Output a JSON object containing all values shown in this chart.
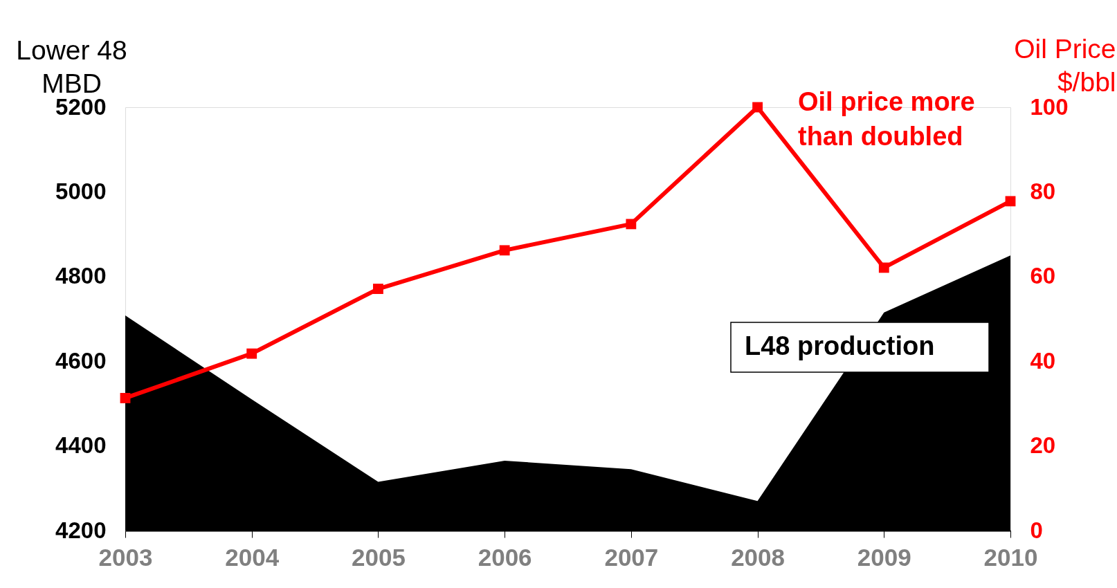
{
  "chart_data": {
    "type": "area",
    "categories": [
      "2003",
      "2004",
      "2005",
      "2006",
      "2007",
      "2008",
      "2009",
      "2010"
    ],
    "ylabel": "Lower 48\nMBD",
    "y2label": "Oil Price\n$/bbl",
    "ylim": [
      4200,
      5200
    ],
    "yticks": [
      4200,
      4400,
      4600,
      4800,
      5000,
      5200
    ],
    "y2lim": [
      0,
      100
    ],
    "y2ticks": [
      0,
      20,
      40,
      60,
      80,
      100
    ],
    "series": [
      {
        "name": "L48 production",
        "color": "#000000",
        "values": [
          4708,
          4510,
          4315,
          4365,
          4345,
          4270,
          4715,
          4850
        ]
      },
      {
        "type": "line",
        "axis": "y2",
        "color": "#ff0000",
        "marker": "square",
        "values": [
          31.3,
          41.8,
          57.1,
          66.2,
          72.4,
          100,
          62.1,
          77.8
        ]
      }
    ],
    "annotations": [
      "Oil price more\nthan doubled"
    ],
    "grid": false
  }
}
